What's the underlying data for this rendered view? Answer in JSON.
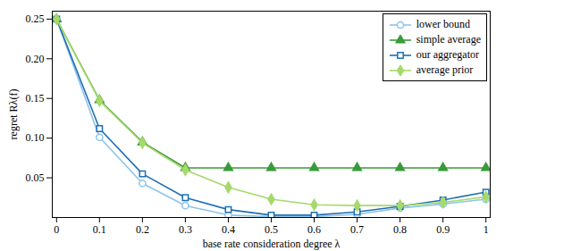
{
  "chart_data": {
    "type": "line",
    "x_label": "base rate consideration degree λ",
    "y_label": "regret Rλ(f)",
    "x": [
      0,
      0.1,
      0.2,
      0.3,
      0.4,
      0.5,
      0.6,
      0.7,
      0.8,
      0.9,
      1
    ],
    "series": [
      {
        "name": "lower bound",
        "color": "#8cc4ea",
        "marker": "circle",
        "values": [
          0.25,
          0.101,
          0.043,
          0.015,
          0.003,
          0.001,
          0.001,
          0.004,
          0.012,
          0.017,
          0.023
        ]
      },
      {
        "name": "simple average",
        "color": "#3a9a3a",
        "marker": "triangle",
        "values": [
          0.25,
          0.148,
          0.095,
          0.0625,
          0.0625,
          0.0625,
          0.0625,
          0.0625,
          0.0625,
          0.0625,
          0.0625
        ]
      },
      {
        "name": "our aggregator",
        "color": "#1f6fb4",
        "marker": "square",
        "values": [
          0.25,
          0.112,
          0.055,
          0.025,
          0.01,
          0.003,
          0.003,
          0.007,
          0.014,
          0.022,
          0.032
        ]
      },
      {
        "name": "average prior",
        "color": "#a6d96a",
        "marker": "diamond",
        "values": [
          0.25,
          0.147,
          0.094,
          0.06,
          0.038,
          0.023,
          0.016,
          0.015,
          0.015,
          0.019,
          0.026
        ]
      }
    ],
    "xlim": [
      -0.01,
      1.01
    ],
    "ylim": [
      0,
      0.26
    ],
    "xticks": [
      0,
      0.1,
      0.2,
      0.3,
      0.4,
      0.5,
      0.6,
      0.7,
      0.8,
      0.9,
      1
    ],
    "yticks": [
      {
        "value": 0.05,
        "label": "0.05"
      },
      {
        "value": 0.1,
        "label": "0.10"
      },
      {
        "value": 0.15,
        "label": "0.15"
      },
      {
        "value": 0.2,
        "label": "0.20"
      },
      {
        "value": 0.25,
        "label": "0.25"
      }
    ],
    "legend": "top-right",
    "grid": false
  }
}
